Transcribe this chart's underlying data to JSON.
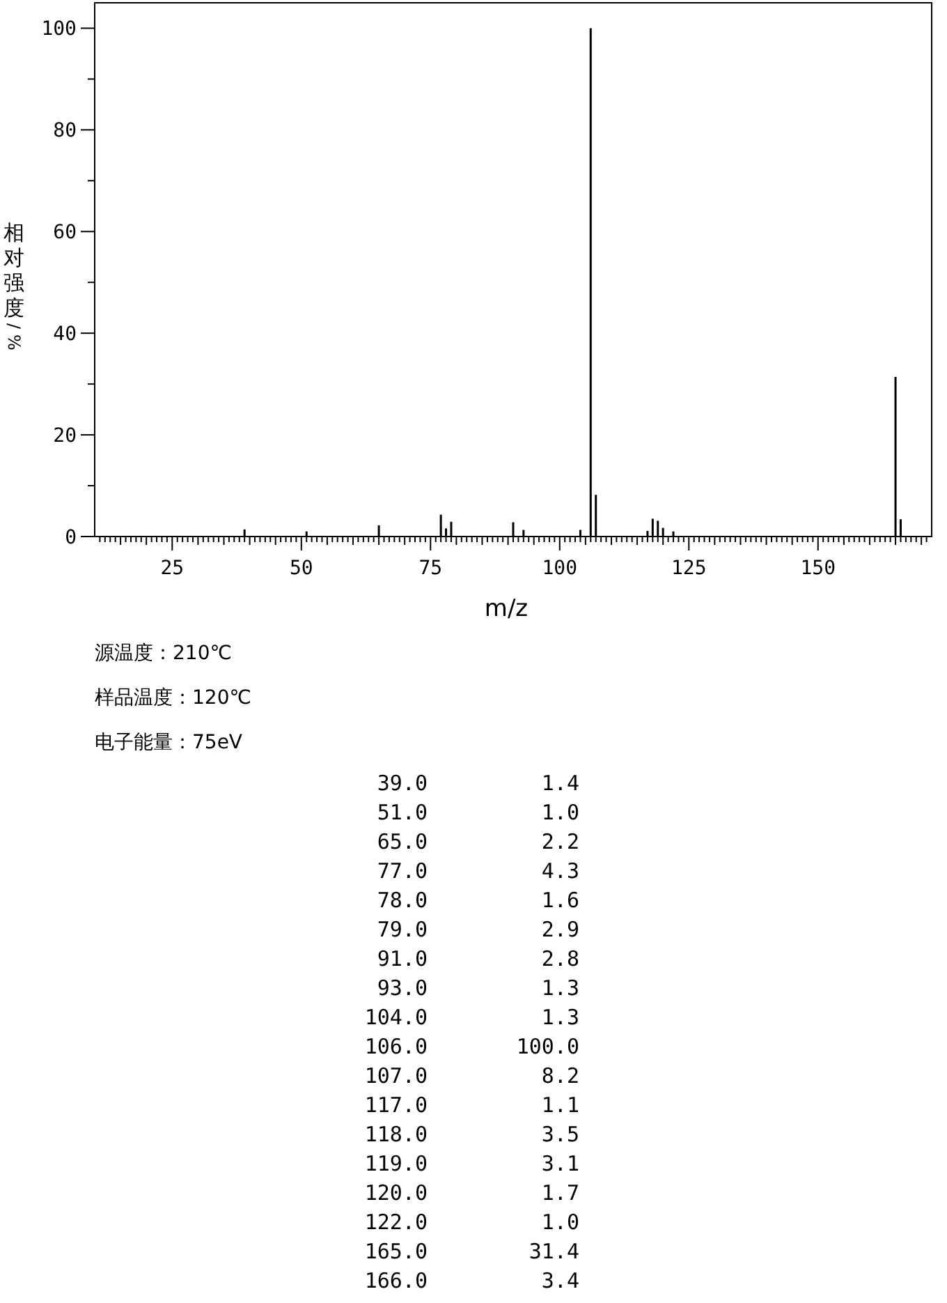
{
  "chart_data": [
    {
      "type": "bar",
      "xlabel": "m/z",
      "ylabel": "相对强度/%",
      "x": [
        39,
        51,
        65,
        77,
        78,
        79,
        91,
        93,
        104,
        106,
        107,
        117,
        118,
        119,
        120,
        122,
        165,
        166
      ],
      "values": [
        1.4,
        1.0,
        2.2,
        4.3,
        1.6,
        2.9,
        2.8,
        1.3,
        1.3,
        100.0,
        8.2,
        1.1,
        3.5,
        3.1,
        1.7,
        1.0,
        31.4,
        3.4
      ],
      "color": "#000000",
      "xlim": [
        10,
        172
      ],
      "xticks": [
        {
          "value": 11,
          "label": null
        },
        {
          "value": 12,
          "label": null
        },
        {
          "value": 13,
          "label": null
        },
        {
          "value": 14,
          "label": null
        },
        {
          "value": 15,
          "label": null
        },
        {
          "value": 16,
          "label": null
        },
        {
          "value": 17,
          "label": null
        },
        {
          "value": 18,
          "label": null
        },
        {
          "value": 19,
          "label": null
        },
        {
          "value": 20,
          "label": null
        },
        {
          "value": 21,
          "label": null
        },
        {
          "value": 22,
          "label": null
        },
        {
          "value": 23,
          "label": null
        },
        {
          "value": 24,
          "label": null
        },
        25,
        {
          "value": 26,
          "label": null
        },
        {
          "value": 27,
          "label": null
        },
        {
          "value": 28,
          "label": null
        },
        {
          "value": 29,
          "label": null
        },
        {
          "value": 30,
          "label": null
        },
        {
          "value": 31,
          "label": null
        },
        {
          "value": 32,
          "label": null
        },
        {
          "value": 33,
          "label": null
        },
        {
          "value": 34,
          "label": null
        },
        {
          "value": 35,
          "label": null
        },
        {
          "value": 36,
          "label": null
        },
        {
          "value": 37,
          "label": null
        },
        {
          "value": 38,
          "label": null
        },
        {
          "value": 39,
          "label": null
        },
        {
          "value": 40,
          "label": null
        },
        {
          "value": 41,
          "label": null
        },
        {
          "value": 42,
          "label": null
        },
        {
          "value": 43,
          "label": null
        },
        {
          "value": 44,
          "label": null
        },
        {
          "value": 45,
          "label": null
        },
        {
          "value": 46,
          "label": null
        },
        {
          "value": 47,
          "label": null
        },
        {
          "value": 48,
          "label": null
        },
        {
          "value": 49,
          "label": null
        },
        50,
        {
          "value": 51,
          "label": null
        },
        {
          "value": 52,
          "label": null
        },
        {
          "value": 53,
          "label": null
        },
        {
          "value": 54,
          "label": null
        },
        {
          "value": 55,
          "label": null
        },
        {
          "value": 56,
          "label": null
        },
        {
          "value": 57,
          "label": null
        },
        {
          "value": 58,
          "label": null
        },
        {
          "value": 59,
          "label": null
        },
        {
          "value": 60,
          "label": null
        },
        {
          "value": 61,
          "label": null
        },
        {
          "value": 62,
          "label": null
        },
        {
          "value": 63,
          "label": null
        },
        {
          "value": 64,
          "label": null
        },
        {
          "value": 65,
          "label": null
        },
        {
          "value": 66,
          "label": null
        },
        {
          "value": 67,
          "label": null
        },
        {
          "value": 68,
          "label": null
        },
        {
          "value": 69,
          "label": null
        },
        {
          "value": 70,
          "label": null
        },
        {
          "value": 71,
          "label": null
        },
        {
          "value": 72,
          "label": null
        },
        {
          "value": 73,
          "label": null
        },
        {
          "value": 74,
          "label": null
        },
        75,
        {
          "value": 76,
          "label": null
        },
        {
          "value": 77,
          "label": null
        },
        {
          "value": 78,
          "label": null
        },
        {
          "value": 79,
          "label": null
        },
        {
          "value": 80,
          "label": null
        },
        {
          "value": 81,
          "label": null
        },
        {
          "value": 82,
          "label": null
        },
        {
          "value": 83,
          "label": null
        },
        {
          "value": 84,
          "label": null
        },
        {
          "value": 85,
          "label": null
        },
        {
          "value": 86,
          "label": null
        },
        {
          "value": 87,
          "label": null
        },
        {
          "value": 88,
          "label": null
        },
        {
          "value": 89,
          "label": null
        },
        {
          "value": 90,
          "label": null
        },
        {
          "value": 91,
          "label": null
        },
        {
          "value": 92,
          "label": null
        },
        {
          "value": 93,
          "label": null
        },
        {
          "value": 94,
          "label": null
        },
        {
          "value": 95,
          "label": null
        },
        {
          "value": 96,
          "label": null
        },
        {
          "value": 97,
          "label": null
        },
        {
          "value": 98,
          "label": null
        },
        {
          "value": 99,
          "label": null
        },
        100,
        {
          "value": 101,
          "label": null
        },
        {
          "value": 102,
          "label": null
        },
        {
          "value": 103,
          "label": null
        },
        {
          "value": 104,
          "label": null
        },
        {
          "value": 105,
          "label": null
        },
        {
          "value": 106,
          "label": null
        },
        {
          "value": 107,
          "label": null
        },
        {
          "value": 108,
          "label": null
        },
        {
          "value": 109,
          "label": null
        },
        {
          "value": 110,
          "label": null
        },
        {
          "value": 111,
          "label": null
        },
        {
          "value": 112,
          "label": null
        },
        {
          "value": 113,
          "label": null
        },
        {
          "value": 114,
          "label": null
        },
        {
          "value": 115,
          "label": null
        },
        {
          "value": 116,
          "label": null
        },
        {
          "value": 117,
          "label": null
        },
        {
          "value": 118,
          "label": null
        },
        {
          "value": 119,
          "label": null
        },
        {
          "value": 120,
          "label": null
        },
        {
          "value": 121,
          "label": null
        },
        {
          "value": 122,
          "label": null
        },
        {
          "value": 123,
          "label": null
        },
        {
          "value": 124,
          "label": null
        },
        125,
        {
          "value": 126,
          "label": null
        },
        {
          "value": 127,
          "label": null
        },
        {
          "value": 128,
          "label": null
        },
        {
          "value": 129,
          "label": null
        },
        {
          "value": 130,
          "label": null
        },
        {
          "value": 131,
          "label": null
        },
        {
          "value": 132,
          "label": null
        },
        {
          "value": 133,
          "label": null
        },
        {
          "value": 134,
          "label": null
        },
        {
          "value": 135,
          "label": null
        },
        {
          "value": 136,
          "label": null
        },
        {
          "value": 137,
          "label": null
        },
        {
          "value": 138,
          "label": null
        },
        {
          "value": 139,
          "label": null
        },
        {
          "value": 140,
          "label": null
        },
        {
          "value": 141,
          "label": null
        },
        {
          "value": 142,
          "label": null
        },
        {
          "value": 143,
          "label": null
        },
        {
          "value": 144,
          "label": null
        },
        {
          "value": 145,
          "label": null
        },
        {
          "value": 146,
          "label": null
        },
        {
          "value": 147,
          "label": null
        },
        {
          "value": 148,
          "label": null
        },
        {
          "value": 149,
          "label": null
        },
        150,
        {
          "value": 151,
          "label": null
        },
        {
          "value": 152,
          "label": null
        },
        {
          "value": 153,
          "label": null
        },
        {
          "value": 154,
          "label": null
        },
        {
          "value": 155,
          "label": null
        },
        {
          "value": 156,
          "label": null
        },
        {
          "value": 157,
          "label": null
        },
        {
          "value": 158,
          "label": null
        },
        {
          "value": 159,
          "label": null
        },
        {
          "value": 160,
          "label": null
        },
        {
          "value": 161,
          "label": null
        },
        {
          "value": 162,
          "label": null
        },
        {
          "value": 163,
          "label": null
        },
        {
          "value": 164,
          "label": null
        },
        {
          "value": 165,
          "label": null
        },
        {
          "value": 166,
          "label": null
        },
        {
          "value": 167,
          "label": null
        },
        {
          "value": 168,
          "label": null
        },
        {
          "value": 169,
          "label": null
        },
        {
          "value": 170,
          "label": null
        },
        {
          "value": 171,
          "label": null
        }
      ],
      "ylim": [
        0,
        105
      ],
      "yticks": [
        0,
        {
          "value": 10,
          "label": null
        },
        20,
        {
          "value": 30,
          "label": null
        },
        40,
        {
          "value": 50,
          "label": null
        },
        60,
        {
          "value": 70,
          "label": null
        },
        80,
        {
          "value": 90,
          "label": null
        },
        100
      ],
      "annotations": [
        "源温度：210℃",
        "样品温度：120℃",
        "电子能量：75eV"
      ]
    },
    {
      "type": "other",
      "annotations": [
        "39.0",
        "1.4",
        "51.0",
        "1.0",
        "65.0",
        "2.2",
        "77.0",
        "4.3",
        "78.0",
        "1.6",
        "79.0",
        "2.9",
        "91.0",
        "2.8",
        "93.0",
        "1.3",
        "104.0",
        "1.3",
        "106.0",
        "100.0",
        "107.0",
        "8.2",
        "117.0",
        "1.1",
        "118.0",
        "3.5",
        "119.0",
        "3.1",
        "120.0",
        "1.7",
        "122.0",
        "1.0",
        "165.0",
        "31.4",
        "166.0",
        "3.4"
      ]
    }
  ]
}
